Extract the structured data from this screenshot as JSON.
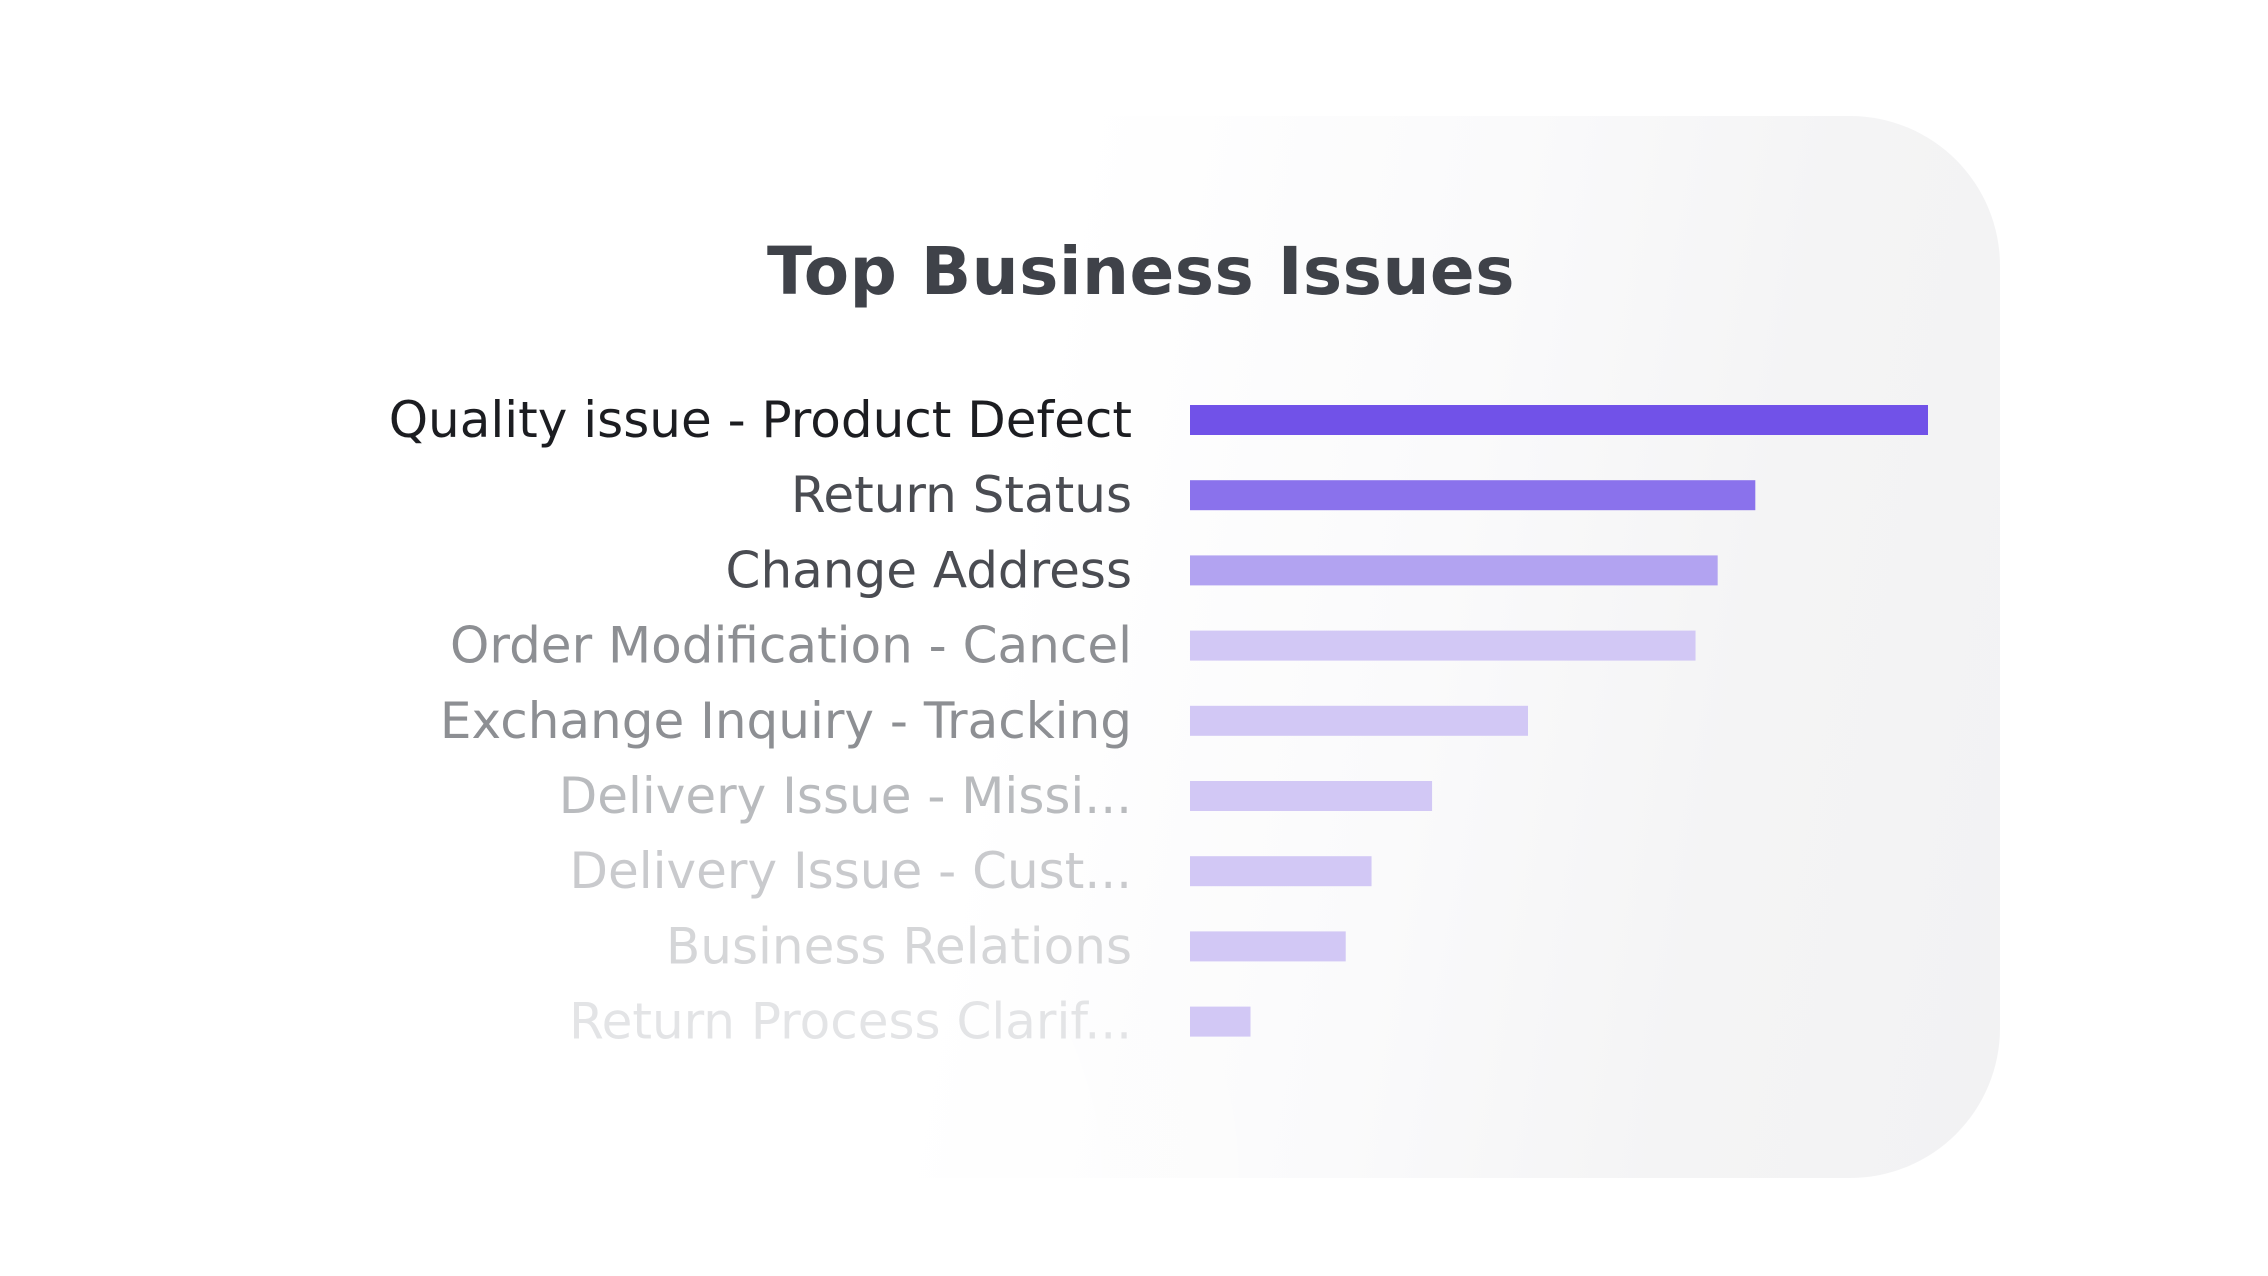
{
  "chart_data": {
    "type": "bar",
    "orientation": "horizontal",
    "title": "Top Business Issues",
    "xlabel": "",
    "ylabel": "",
    "categories": [
      "Quality issue - Product Defect",
      "Return Status",
      "Change Address",
      "Order Modification - Cancel",
      "Exchange Inquiry - Tracking",
      "Delivery Issue - Missi...",
      "Delivery Issue - Cust...",
      "Business Relations",
      "Return Process Clarif..."
    ],
    "values": [
      100,
      76.6,
      71.5,
      68.5,
      45.8,
      32.8,
      24.6,
      21.1,
      8.2
    ],
    "xlim": [
      0,
      100
    ],
    "grid": false,
    "legend": "none",
    "colors": {
      "bars": [
        "#7152e8",
        "#8a72ec",
        "#b2a3f1",
        "#d2c8f5",
        "#d2c8f5",
        "#d2c8f5",
        "#d2c8f5",
        "#d2c8f5",
        "#d2c8f5"
      ],
      "labels": [
        "#1c1d21",
        "#4a4c52",
        "#4a4c52",
        "#8d8f93",
        "#8d8f93",
        "#b9bbbe",
        "#c9cacd",
        "#d5d6d8",
        "#e3e4e6"
      ],
      "title": "#3f4249"
    }
  }
}
